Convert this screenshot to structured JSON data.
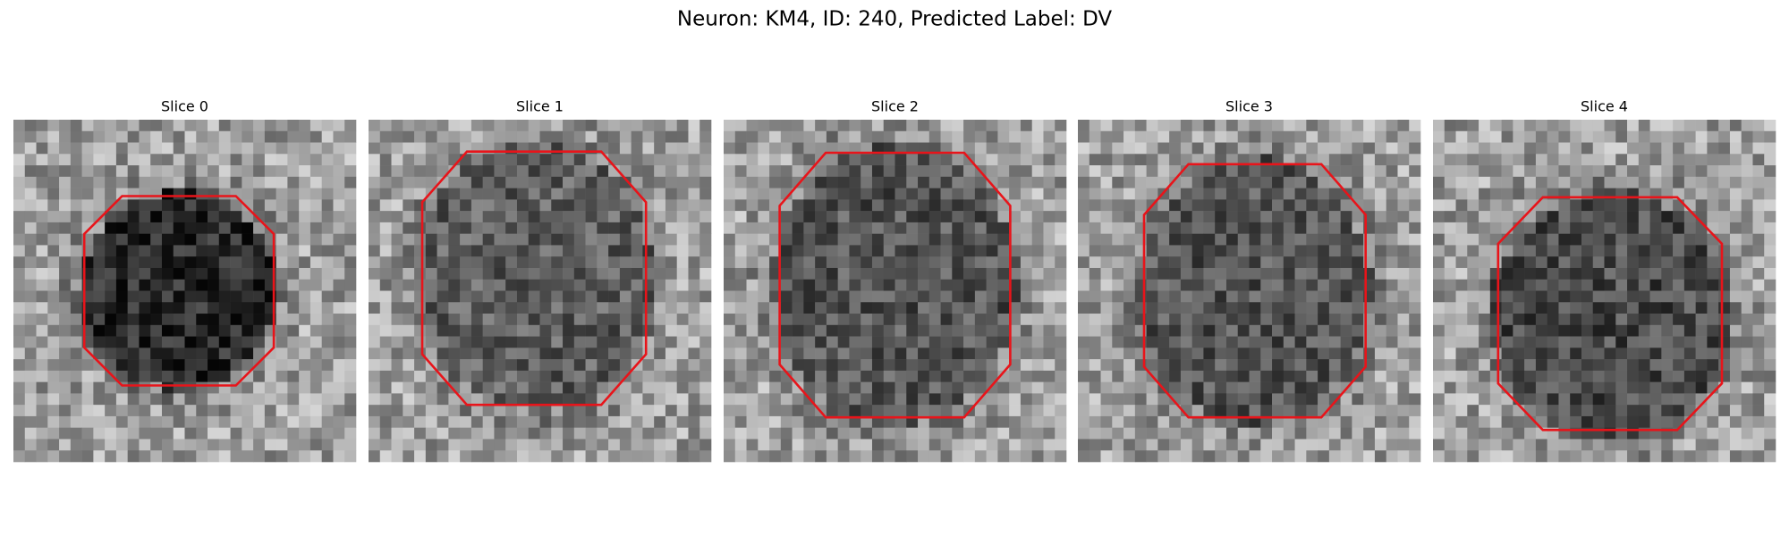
{
  "title": "Neuron: KM4, ID: 240, Predicted Label: DV",
  "panels": [
    {
      "title": "Slice 0"
    },
    {
      "title": "Slice 1"
    },
    {
      "title": "Slice 2"
    },
    {
      "title": "Slice 3"
    },
    {
      "title": "Slice 4"
    }
  ]
}
